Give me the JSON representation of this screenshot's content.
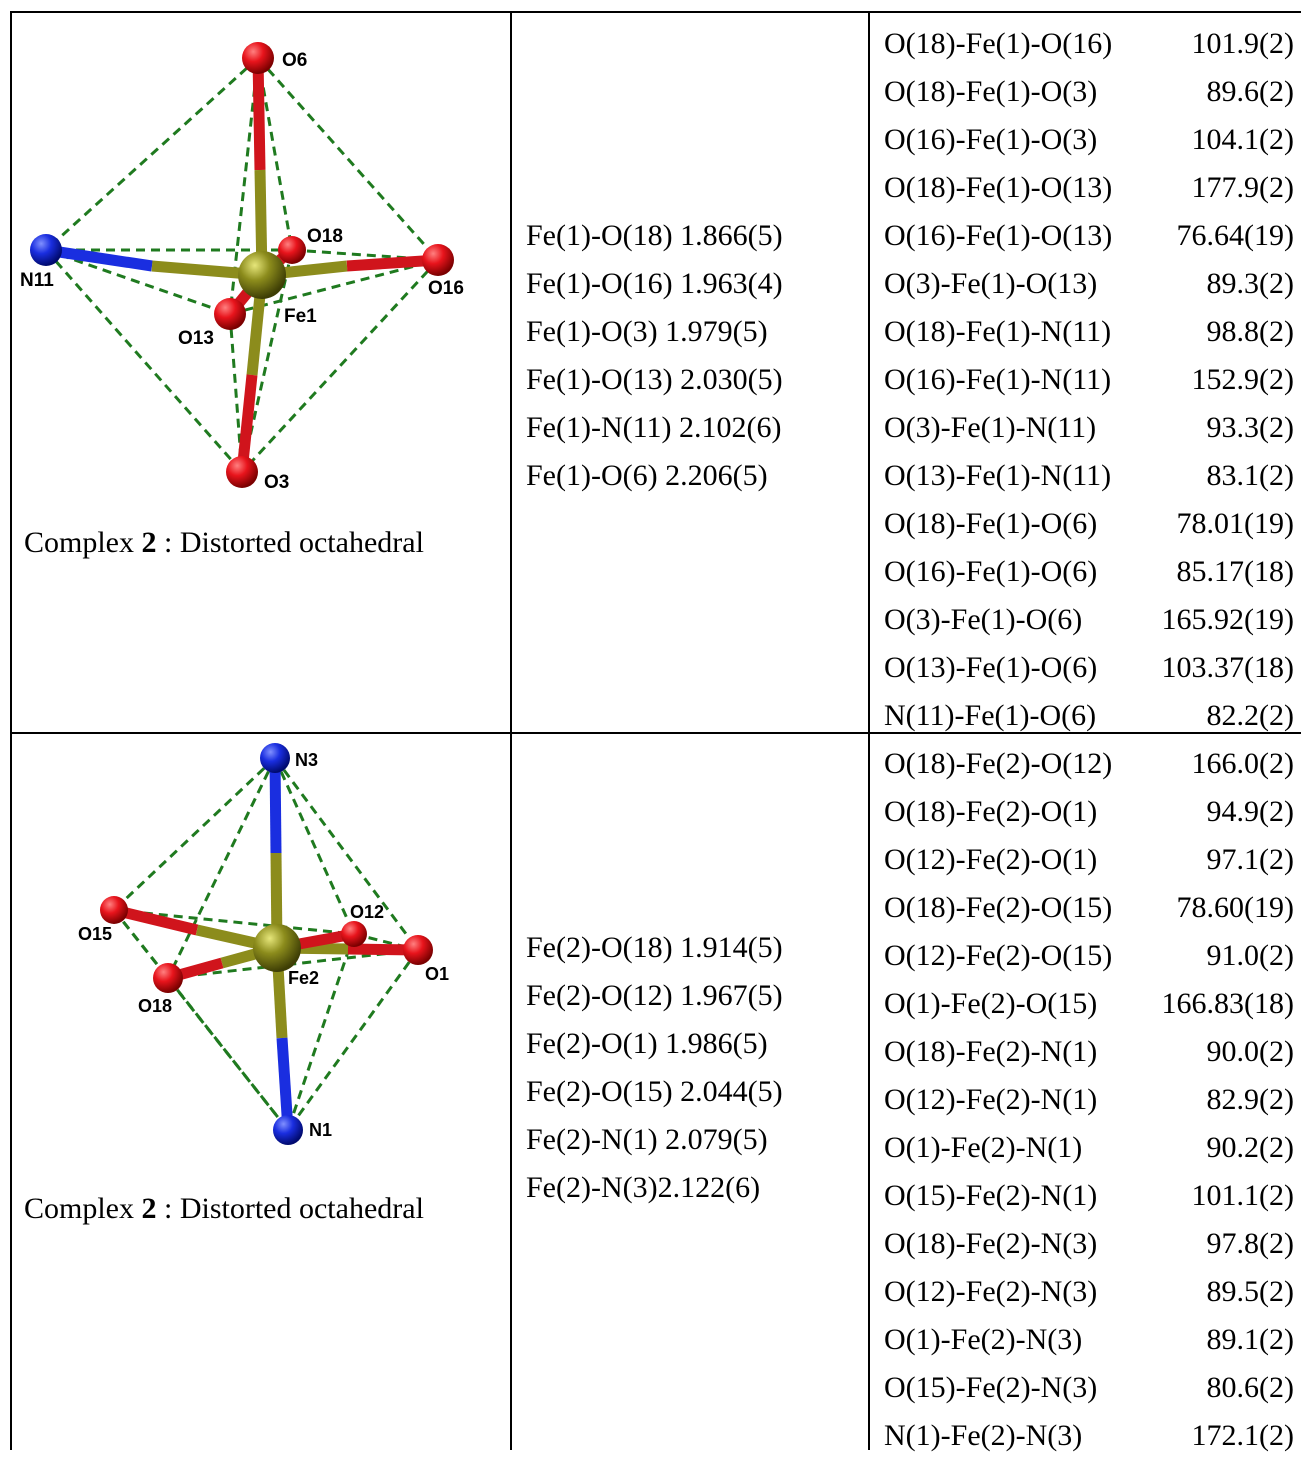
{
  "rows": [
    {
      "caption": {
        "prefix": "Complex ",
        "number": "2",
        "suffix": " : Distorted  octahedral"
      },
      "atom_labels": {
        "top": "O6",
        "left": "N11",
        "right": "O16",
        "front": "O13",
        "back": "O18",
        "bottom": "O3",
        "center": "Fe1"
      },
      "bonds": [
        "Fe(1)-O(18) 1.866(5)",
        "Fe(1)-O(16) 1.963(4)",
        "Fe(1)-O(3) 1.979(5)",
        "Fe(1)-O(13) 2.030(5)",
        "Fe(1)-N(11) 2.102(6)",
        "Fe(1)-O(6)  2.206(5)"
      ],
      "angles": [
        {
          "label": "O(18)-Fe(1)-O(16)",
          "value": "101.9(2)"
        },
        {
          "label": "O(18)-Fe(1)-O(3)",
          "value": "89.6(2)"
        },
        {
          "label": "O(16)-Fe(1)-O(3)",
          "value": "104.1(2)"
        },
        {
          "label": "O(18)-Fe(1)-O(13)",
          "value": "177.9(2)"
        },
        {
          "label": "O(16)-Fe(1)-O(13)",
          "value": "76.64(19)"
        },
        {
          "label": "O(3)-Fe(1)-O(13)",
          "value": "89.3(2)"
        },
        {
          "label": "O(18)-Fe(1)-N(11)",
          "value": "98.8(2)"
        },
        {
          "label": "O(16)-Fe(1)-N(11)",
          "value": "152.9(2)"
        },
        {
          "label": "O(3)-Fe(1)-N(11)",
          "value": "93.3(2)"
        },
        {
          "label": "O(13)-Fe(1)-N(11)",
          "value": "83.1(2)"
        },
        {
          "label": "O(18)-Fe(1)-O(6)",
          "value": "78.01(19)"
        },
        {
          "label": "O(16)-Fe(1)-O(6)",
          "value": "85.17(18)"
        },
        {
          "label": "O(3)-Fe(1)-O(6)",
          "value": "165.92(19)"
        },
        {
          "label": "O(13)-Fe(1)-O(6)",
          "value": "103.37(18)"
        },
        {
          "label": "N(11)-Fe(1)-O(6)",
          "value": "82.2(2)"
        }
      ]
    },
    {
      "caption": {
        "prefix": "Complex ",
        "number": "2",
        "suffix": " : Distorted  octahedral"
      },
      "atom_labels": {
        "top": "N3",
        "left": "O15",
        "right": "O1",
        "front": "O18",
        "back": "O12",
        "bottom": "N1",
        "center": "Fe2"
      },
      "bonds": [
        "Fe(2)-O(18) 1.914(5)",
        "Fe(2)-O(12) 1.967(5)",
        "Fe(2)-O(1) 1.986(5)",
        "Fe(2)-O(15) 2.044(5)",
        "Fe(2)-N(1) 2.079(5)",
        "Fe(2)-N(3)2.122(6)"
      ],
      "angles": [
        {
          "label": "O(18)-Fe(2)-O(12)",
          "value": "166.0(2)"
        },
        {
          "label": "O(18)-Fe(2)-O(1)",
          "value": "94.9(2)"
        },
        {
          "label": "O(12)-Fe(2)-O(1)",
          "value": "97.1(2)"
        },
        {
          "label": "O(18)-Fe(2)-O(15)",
          "value": "78.60(19)"
        },
        {
          "label": "O(12)-Fe(2)-O(15)",
          "value": "91.0(2)"
        },
        {
          "label": "O(1)-Fe(2)-O(15)",
          "value": "166.83(18)"
        },
        {
          "label": "O(18)-Fe(2)-N(1)",
          "value": "90.0(2)"
        },
        {
          "label": "O(12)-Fe(2)-N(1)",
          "value": "82.9(2)"
        },
        {
          "label": "O(1)-Fe(2)-N(1)",
          "value": "90.2(2)"
        },
        {
          "label": "O(15)-Fe(2)-N(1)",
          "value": "101.1(2)"
        },
        {
          "label": "O(18)-Fe(2)-N(3)",
          "value": "97.8(2)"
        },
        {
          "label": "O(12)-Fe(2)-N(3)",
          "value": "89.5(2)"
        },
        {
          "label": "O(1)-Fe(2)-N(3)",
          "value": "89.1(2)"
        },
        {
          "label": "O(15)-Fe(2)-N(3)",
          "value": "80.6(2)"
        },
        {
          "label": "N(1)-Fe(2)-N(3)",
          "value": "172.1(2)"
        }
      ]
    }
  ],
  "colors": {
    "oxygen": "#e8141c",
    "nitrogen": "#1a2ee0",
    "iron": "#8c8c1c",
    "polyhedron_edge": "#1f7a1f",
    "text": "#000000"
  }
}
